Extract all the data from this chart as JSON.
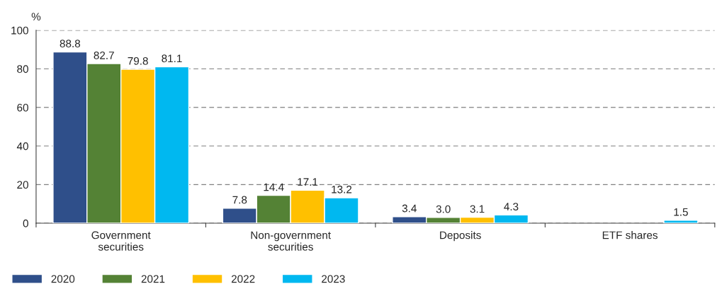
{
  "chart_data": {
    "type": "bar",
    "ylabel": "%",
    "categories": [
      "Government\nsecurities",
      "Non-government\nsecurities",
      "Deposits",
      "ETF shares"
    ],
    "series": [
      {
        "name": "2020",
        "color": "#2f4f8a",
        "values": [
          88.8,
          7.8,
          3.4,
          null
        ],
        "value_labels": [
          "88.8",
          "7.8",
          "3.4",
          null
        ]
      },
      {
        "name": "2021",
        "color": "#548235",
        "values": [
          82.7,
          14.4,
          3.0,
          null
        ],
        "value_labels": [
          "82.7",
          "14.4",
          "3.0",
          null
        ]
      },
      {
        "name": "2022",
        "color": "#ffc000",
        "values": [
          79.8,
          17.1,
          3.1,
          null
        ],
        "value_labels": [
          "79.8",
          "17.1",
          "3.1",
          null
        ]
      },
      {
        "name": "2023",
        "color": "#00b8f0",
        "values": [
          81.1,
          13.2,
          4.3,
          1.5
        ],
        "value_labels": [
          "81.1",
          "13.2",
          "4.3",
          "1.5"
        ]
      }
    ],
    "ylim": [
      0,
      100
    ],
    "yticks": [
      0,
      20,
      40,
      60,
      80,
      100
    ],
    "grid": "y",
    "legend": "bottom left"
  }
}
